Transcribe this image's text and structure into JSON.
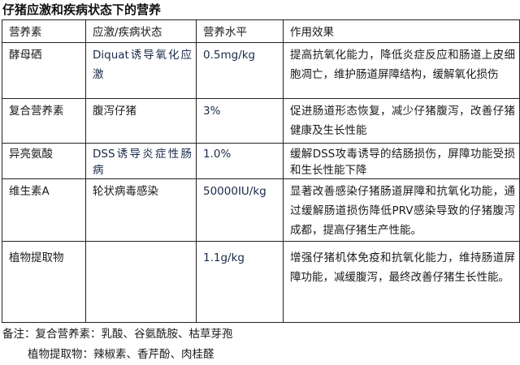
{
  "title": "仔猪应激和疾病状态下的营养",
  "table": {
    "headers": [
      "营养素",
      "应激/疾病状态",
      "营养水平",
      "作用效果"
    ],
    "rows": [
      {
        "nutrient": "酵母硒",
        "condition": "Diquat诱导氧化应激",
        "level": "0.5mg/kg",
        "effect": "提高抗氧化能力，降低炎症反应和肠道上皮细胞凋亡，维护肠道屏障结构，缓解氧化损伤"
      },
      {
        "nutrient": "复合营养素",
        "condition": "腹泻仔猪",
        "level": "3%",
        "effect": "促进肠道形态恢复，减少仔猪腹泻，改善仔猪健康及生长性能"
      },
      {
        "nutrient": "异亮氨酸",
        "condition": "DSS诱导炎症性肠病",
        "level": "1.0%",
        "effect": "缓解DSS攻毒诱导的结肠损伤，屏障功能受损和生长性能下降"
      },
      {
        "nutrient": "维生素A",
        "condition": "轮状病毒感染",
        "level": "50000IU/kg",
        "effect": "显著改善感染仔猪肠道屏障和抗氧化功能，通过缓解肠道损伤降低PRV感染导致的仔猪腹泻成都，提高仔猪生产性能。"
      },
      {
        "nutrient": "植物提取物",
        "condition": "",
        "level": "1.1g/kg",
        "effect": "增强仔猪机体免疫和抗氧化能力，维持肠道屏障功能，减缓腹泻，最终改善仔猪生长性能。"
      }
    ]
  },
  "notes": {
    "line1": "备注：复合营养素：乳酸、谷氨酰胺、枯草芽孢",
    "line2": "植物提取物：辣椒素、香芹酚、肉桂醛"
  }
}
